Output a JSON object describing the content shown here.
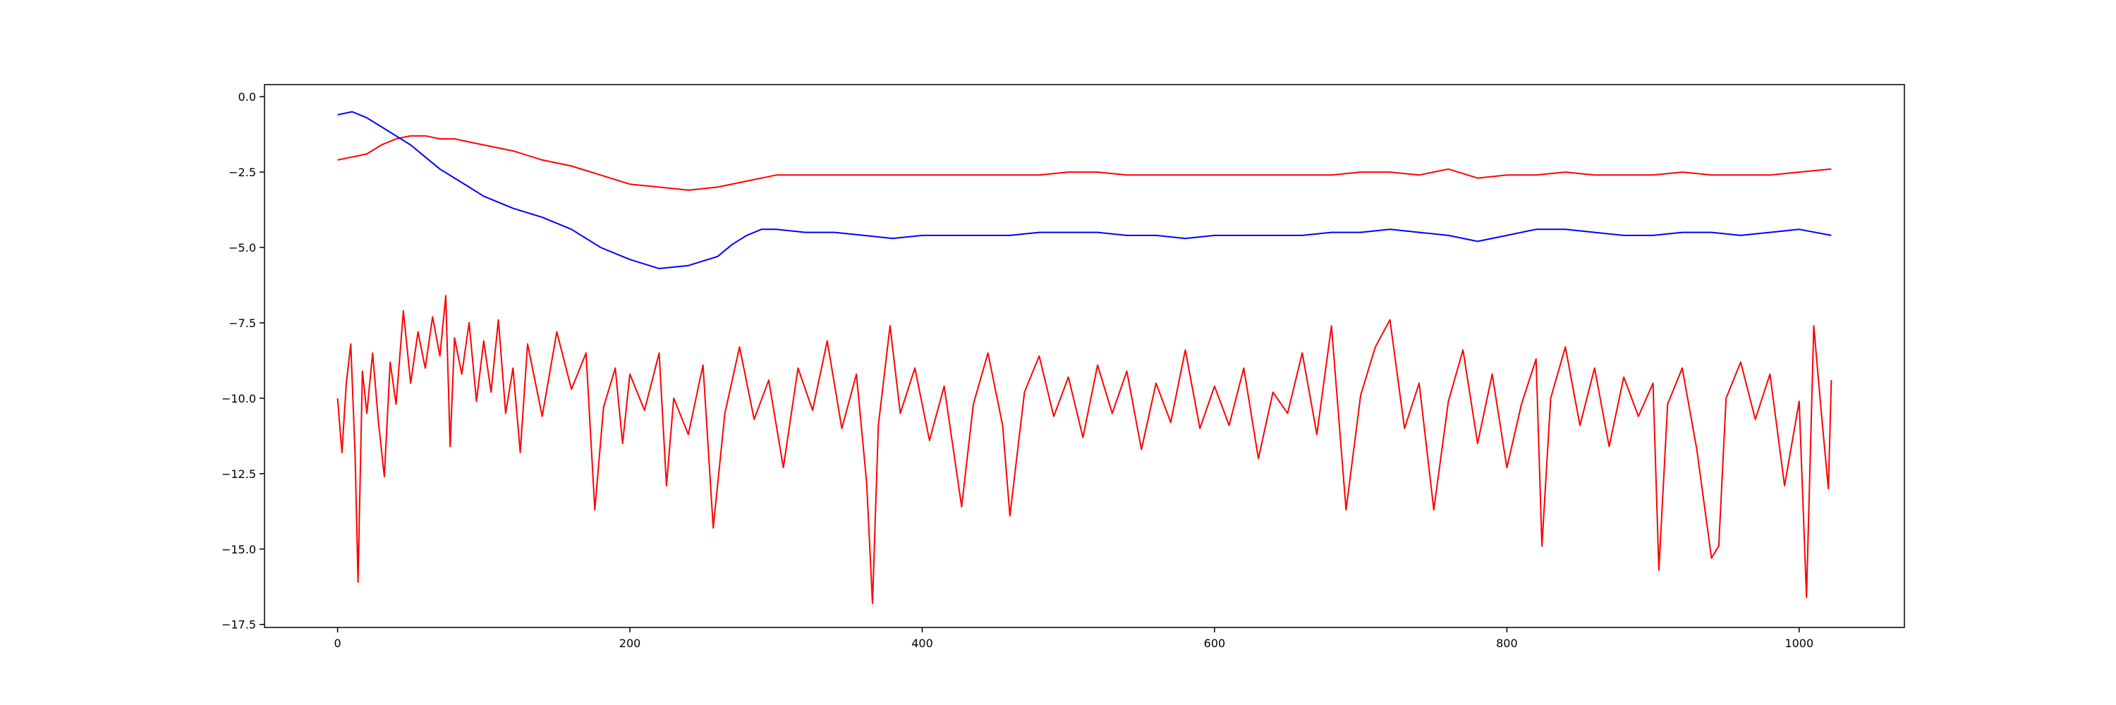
{
  "chart_data": {
    "type": "line",
    "title": "",
    "xlabel": "",
    "ylabel": "",
    "xlim": [
      -50,
      1072
    ],
    "ylim": [
      -17.6,
      0.4
    ],
    "grid": false,
    "x_ticks": [
      0,
      200,
      400,
      600,
      800,
      1000
    ],
    "x_tick_labels": [
      "0",
      "200",
      "400",
      "600",
      "800",
      "1000"
    ],
    "y_ticks": [
      0,
      -2.5,
      -5,
      -7.5,
      -10,
      -12.5,
      -15,
      -17.5
    ],
    "y_tick_labels": [
      "0.0",
      "−2.5",
      "−5.0",
      "−7.5",
      "−10.0",
      "−12.5",
      "−15.0",
      "−17.5"
    ],
    "series": [
      {
        "color": "#ff0000",
        "points": [
          [
            0,
            -2.1
          ],
          [
            10,
            -2.0
          ],
          [
            20,
            -1.9
          ],
          [
            30,
            -1.6
          ],
          [
            40,
            -1.4
          ],
          [
            50,
            -1.3
          ],
          [
            60,
            -1.3
          ],
          [
            70,
            -1.4
          ],
          [
            80,
            -1.4
          ],
          [
            100,
            -1.6
          ],
          [
            120,
            -1.8
          ],
          [
            140,
            -2.1
          ],
          [
            160,
            -2.3
          ],
          [
            180,
            -2.6
          ],
          [
            200,
            -2.9
          ],
          [
            220,
            -3.0
          ],
          [
            240,
            -3.1
          ],
          [
            260,
            -3.0
          ],
          [
            280,
            -2.8
          ],
          [
            300,
            -2.6
          ],
          [
            320,
            -2.6
          ],
          [
            340,
            -2.6
          ],
          [
            360,
            -2.6
          ],
          [
            380,
            -2.6
          ],
          [
            400,
            -2.6
          ],
          [
            420,
            -2.6
          ],
          [
            440,
            -2.6
          ],
          [
            460,
            -2.6
          ],
          [
            480,
            -2.6
          ],
          [
            500,
            -2.5
          ],
          [
            520,
            -2.5
          ],
          [
            540,
            -2.6
          ],
          [
            560,
            -2.6
          ],
          [
            580,
            -2.6
          ],
          [
            600,
            -2.6
          ],
          [
            620,
            -2.6
          ],
          [
            640,
            -2.6
          ],
          [
            660,
            -2.6
          ],
          [
            680,
            -2.6
          ],
          [
            700,
            -2.5
          ],
          [
            720,
            -2.5
          ],
          [
            740,
            -2.6
          ],
          [
            760,
            -2.4
          ],
          [
            780,
            -2.7
          ],
          [
            800,
            -2.6
          ],
          [
            820,
            -2.6
          ],
          [
            840,
            -2.5
          ],
          [
            860,
            -2.6
          ],
          [
            880,
            -2.6
          ],
          [
            900,
            -2.6
          ],
          [
            920,
            -2.5
          ],
          [
            940,
            -2.6
          ],
          [
            960,
            -2.6
          ],
          [
            980,
            -2.6
          ],
          [
            1000,
            -2.5
          ],
          [
            1022,
            -2.4
          ]
        ]
      },
      {
        "color": "#0000ff",
        "points": [
          [
            0,
            -0.6
          ],
          [
            10,
            -0.5
          ],
          [
            20,
            -0.7
          ],
          [
            30,
            -1.0
          ],
          [
            40,
            -1.3
          ],
          [
            50,
            -1.6
          ],
          [
            60,
            -2.0
          ],
          [
            70,
            -2.4
          ],
          [
            80,
            -2.7
          ],
          [
            90,
            -3.0
          ],
          [
            100,
            -3.3
          ],
          [
            120,
            -3.7
          ],
          [
            140,
            -4.0
          ],
          [
            160,
            -4.4
          ],
          [
            180,
            -5.0
          ],
          [
            200,
            -5.4
          ],
          [
            220,
            -5.7
          ],
          [
            240,
            -5.6
          ],
          [
            260,
            -5.3
          ],
          [
            270,
            -4.9
          ],
          [
            280,
            -4.6
          ],
          [
            290,
            -4.4
          ],
          [
            300,
            -4.4
          ],
          [
            320,
            -4.5
          ],
          [
            340,
            -4.5
          ],
          [
            360,
            -4.6
          ],
          [
            380,
            -4.7
          ],
          [
            400,
            -4.6
          ],
          [
            420,
            -4.6
          ],
          [
            440,
            -4.6
          ],
          [
            460,
            -4.6
          ],
          [
            480,
            -4.5
          ],
          [
            500,
            -4.5
          ],
          [
            520,
            -4.5
          ],
          [
            540,
            -4.6
          ],
          [
            560,
            -4.6
          ],
          [
            580,
            -4.7
          ],
          [
            600,
            -4.6
          ],
          [
            620,
            -4.6
          ],
          [
            640,
            -4.6
          ],
          [
            660,
            -4.6
          ],
          [
            680,
            -4.5
          ],
          [
            700,
            -4.5
          ],
          [
            720,
            -4.4
          ],
          [
            740,
            -4.5
          ],
          [
            760,
            -4.6
          ],
          [
            780,
            -4.8
          ],
          [
            800,
            -4.6
          ],
          [
            820,
            -4.4
          ],
          [
            840,
            -4.4
          ],
          [
            860,
            -4.5
          ],
          [
            880,
            -4.6
          ],
          [
            900,
            -4.6
          ],
          [
            920,
            -4.5
          ],
          [
            940,
            -4.5
          ],
          [
            960,
            -4.6
          ],
          [
            980,
            -4.5
          ],
          [
            1000,
            -4.4
          ],
          [
            1022,
            -4.6
          ]
        ]
      },
      {
        "color": "#ff0000",
        "points": [
          [
            0,
            -10.0
          ],
          [
            3,
            -11.8
          ],
          [
            6,
            -9.5
          ],
          [
            9,
            -8.2
          ],
          [
            12,
            -11.9
          ],
          [
            14,
            -16.1
          ],
          [
            17,
            -9.1
          ],
          [
            20,
            -10.5
          ],
          [
            24,
            -8.5
          ],
          [
            28,
            -10.8
          ],
          [
            32,
            -12.6
          ],
          [
            36,
            -8.8
          ],
          [
            40,
            -10.2
          ],
          [
            45,
            -7.1
          ],
          [
            50,
            -9.5
          ],
          [
            55,
            -7.8
          ],
          [
            60,
            -9.0
          ],
          [
            65,
            -7.3
          ],
          [
            70,
            -8.6
          ],
          [
            74,
            -6.6
          ],
          [
            77,
            -11.6
          ],
          [
            80,
            -8.0
          ],
          [
            85,
            -9.2
          ],
          [
            90,
            -7.5
          ],
          [
            95,
            -10.1
          ],
          [
            100,
            -8.1
          ],
          [
            105,
            -9.8
          ],
          [
            110,
            -7.4
          ],
          [
            115,
            -10.5
          ],
          [
            120,
            -9.0
          ],
          [
            125,
            -11.8
          ],
          [
            130,
            -8.2
          ],
          [
            140,
            -10.6
          ],
          [
            150,
            -7.8
          ],
          [
            160,
            -9.7
          ],
          [
            170,
            -8.5
          ],
          [
            176,
            -13.7
          ],
          [
            182,
            -10.3
          ],
          [
            190,
            -9.0
          ],
          [
            195,
            -11.5
          ],
          [
            200,
            -9.2
          ],
          [
            210,
            -10.4
          ],
          [
            220,
            -8.5
          ],
          [
            225,
            -12.9
          ],
          [
            230,
            -10.0
          ],
          [
            240,
            -11.2
          ],
          [
            250,
            -8.9
          ],
          [
            257,
            -14.3
          ],
          [
            265,
            -10.5
          ],
          [
            275,
            -8.3
          ],
          [
            285,
            -10.7
          ],
          [
            295,
            -9.4
          ],
          [
            305,
            -12.3
          ],
          [
            315,
            -9.0
          ],
          [
            325,
            -10.4
          ],
          [
            335,
            -8.1
          ],
          [
            345,
            -11.0
          ],
          [
            355,
            -9.2
          ],
          [
            362,
            -12.8
          ],
          [
            366,
            -16.8
          ],
          [
            370,
            -10.9
          ],
          [
            378,
            -7.6
          ],
          [
            385,
            -10.5
          ],
          [
            395,
            -9.0
          ],
          [
            405,
            -11.4
          ],
          [
            415,
            -9.6
          ],
          [
            427,
            -13.6
          ],
          [
            435,
            -10.2
          ],
          [
            445,
            -8.5
          ],
          [
            455,
            -10.9
          ],
          [
            460,
            -13.9
          ],
          [
            470,
            -9.8
          ],
          [
            480,
            -8.6
          ],
          [
            490,
            -10.6
          ],
          [
            500,
            -9.3
          ],
          [
            510,
            -11.3
          ],
          [
            520,
            -8.9
          ],
          [
            530,
            -10.5
          ],
          [
            540,
            -9.1
          ],
          [
            550,
            -11.7
          ],
          [
            560,
            -9.5
          ],
          [
            570,
            -10.8
          ],
          [
            580,
            -8.4
          ],
          [
            590,
            -11.0
          ],
          [
            600,
            -9.6
          ],
          [
            610,
            -10.9
          ],
          [
            620,
            -9.0
          ],
          [
            630,
            -12.0
          ],
          [
            640,
            -9.8
          ],
          [
            650,
            -10.5
          ],
          [
            660,
            -8.5
          ],
          [
            670,
            -11.2
          ],
          [
            680,
            -7.6
          ],
          [
            690,
            -13.7
          ],
          [
            700,
            -9.9
          ],
          [
            710,
            -8.3
          ],
          [
            720,
            -7.4
          ],
          [
            730,
            -11.0
          ],
          [
            740,
            -9.5
          ],
          [
            750,
            -13.7
          ],
          [
            760,
            -10.1
          ],
          [
            770,
            -8.4
          ],
          [
            780,
            -11.5
          ],
          [
            790,
            -9.2
          ],
          [
            800,
            -12.3
          ],
          [
            810,
            -10.2
          ],
          [
            820,
            -8.7
          ],
          [
            824,
            -14.9
          ],
          [
            830,
            -10.0
          ],
          [
            840,
            -8.3
          ],
          [
            850,
            -10.9
          ],
          [
            860,
            -9.0
          ],
          [
            870,
            -11.6
          ],
          [
            880,
            -9.3
          ],
          [
            890,
            -10.6
          ],
          [
            900,
            -9.5
          ],
          [
            904,
            -15.7
          ],
          [
            910,
            -10.2
          ],
          [
            920,
            -9.0
          ],
          [
            930,
            -11.7
          ],
          [
            940,
            -15.3
          ],
          [
            945,
            -14.9
          ],
          [
            950,
            -10.0
          ],
          [
            960,
            -8.8
          ],
          [
            970,
            -10.7
          ],
          [
            980,
            -9.2
          ],
          [
            990,
            -12.9
          ],
          [
            1000,
            -10.1
          ],
          [
            1005,
            -16.6
          ],
          [
            1010,
            -7.6
          ],
          [
            1015,
            -10.4
          ],
          [
            1020,
            -13.0
          ],
          [
            1022,
            -9.4
          ]
        ]
      }
    ]
  }
}
